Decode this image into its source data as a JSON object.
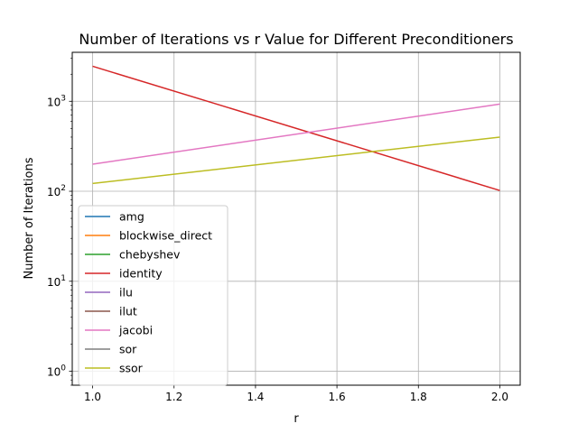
{
  "chart_data": {
    "type": "line",
    "title": "Number of Iterations vs r Value for Different Preconditioners",
    "xlabel": "r",
    "ylabel": "Number of Iterations",
    "xlim": [
      0.95,
      2.05
    ],
    "ylim": [
      0.7,
      3500
    ],
    "yscale": "log",
    "xticks": [
      1.0,
      1.2,
      1.4,
      1.6,
      1.8,
      2.0
    ],
    "xtick_labels": [
      "1.0",
      "1.2",
      "1.4",
      "1.6",
      "1.8",
      "2.0"
    ],
    "yticks": [
      1,
      10,
      100,
      1000
    ],
    "ytick_labels": [
      {
        "base": "10",
        "exp": "0"
      },
      {
        "base": "10",
        "exp": "1"
      },
      {
        "base": "10",
        "exp": "2"
      },
      {
        "base": "10",
        "exp": "3"
      }
    ],
    "grid": true,
    "legend_position": "lower-left",
    "series": [
      {
        "name": "amg",
        "color": "#1f77b4",
        "x": [],
        "y": []
      },
      {
        "name": "blockwise_direct",
        "color": "#ff7f0e",
        "x": [],
        "y": []
      },
      {
        "name": "chebyshev",
        "color": "#2ca02c",
        "x": [],
        "y": []
      },
      {
        "name": "identity",
        "color": "#d62728",
        "x": [
          1.0,
          2.0
        ],
        "y": [
          2450,
          102
        ]
      },
      {
        "name": "ilu",
        "color": "#9467bd",
        "x": [],
        "y": []
      },
      {
        "name": "ilut",
        "color": "#8c564b",
        "x": [],
        "y": []
      },
      {
        "name": "jacobi",
        "color": "#e377c2",
        "x": [
          1.0,
          2.0
        ],
        "y": [
          200,
          930
        ]
      },
      {
        "name": "sor",
        "color": "#7f7f7f",
        "x": [],
        "y": []
      },
      {
        "name": "ssor",
        "color": "#bcbd22",
        "x": [
          1.0,
          2.0
        ],
        "y": [
          122,
          400
        ]
      }
    ]
  }
}
